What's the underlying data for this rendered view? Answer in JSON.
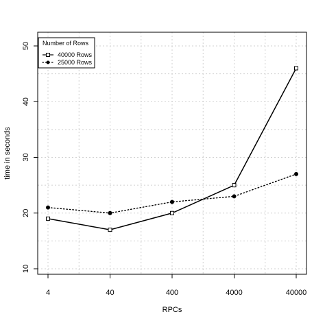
{
  "chart_data": {
    "type": "line",
    "title": "",
    "xlabel": "RPCs",
    "ylabel": "time in seconds",
    "x_scale": "log",
    "categories": [
      "4",
      "40",
      "400",
      "4000",
      "40000"
    ],
    "x": [
      4,
      40,
      400,
      4000,
      40000
    ],
    "ylim": [
      10,
      50
    ],
    "yticks": [
      "10",
      "20",
      "30",
      "40",
      "50"
    ],
    "grid": true,
    "legend": {
      "title": "Number of Rows",
      "position": "top-left"
    },
    "series": [
      {
        "name": "40000 Rows",
        "values": [
          19,
          17,
          20,
          25,
          46
        ],
        "line_style": "solid",
        "marker": "square-open",
        "color": "#000000"
      },
      {
        "name": "25000 Rows",
        "values": [
          21,
          20,
          22,
          23,
          27
        ],
        "line_style": "dotted",
        "marker": "circle-filled",
        "color": "#000000"
      }
    ]
  }
}
